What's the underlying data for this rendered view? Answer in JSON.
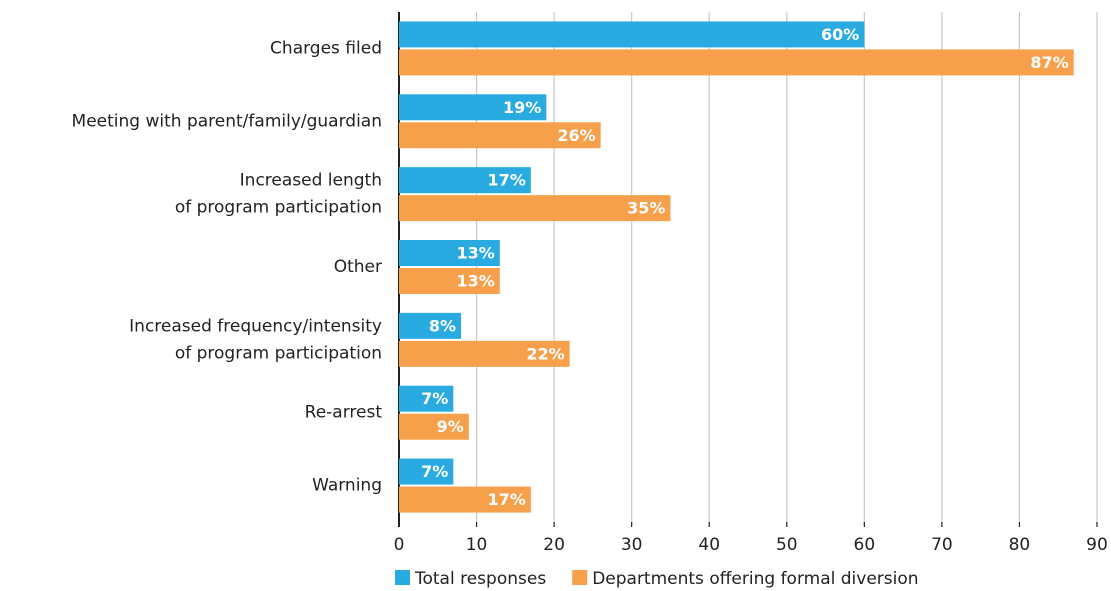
{
  "chart_data": {
    "type": "bar",
    "orientation": "horizontal",
    "categories": [
      "Charges filed",
      "Meeting with parent/family/guardian",
      [
        "Increased length",
        "of program participation"
      ],
      "Other",
      [
        "Increased frequency/intensity",
        "of program participation"
      ],
      "Re-arrest",
      "Warning"
    ],
    "series": [
      {
        "name": "Total responses",
        "color": "#29abe2",
        "values": [
          60,
          19,
          17,
          13,
          8,
          7,
          7
        ],
        "value_labels": [
          "60%",
          "19%",
          "17%",
          "13%",
          "8%",
          "7%",
          "7%"
        ]
      },
      {
        "name": "Departments offering formal diversion",
        "color": "#f7a04b",
        "values": [
          87,
          26,
          35,
          13,
          22,
          9,
          17
        ],
        "value_labels": [
          "87%",
          "26%",
          "35%",
          "13%",
          "22%",
          "9%",
          "17%"
        ]
      }
    ],
    "xlim": [
      0,
      90
    ],
    "xticks": [
      0,
      10,
      20,
      30,
      40,
      50,
      60,
      70,
      80,
      90
    ],
    "grid": true
  }
}
